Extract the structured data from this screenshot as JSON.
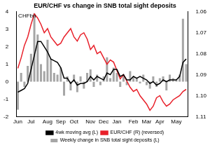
{
  "chart_data": {
    "type": "bar",
    "title": "EUR/CHF vs change in SNB total sight deposits",
    "ylabel": "CHFbn",
    "categories": [
      "Jun",
      null,
      null,
      null,
      "Jul",
      null,
      null,
      null,
      null,
      "Aug",
      null,
      null,
      null,
      "Sep",
      null,
      null,
      null,
      "Oct",
      null,
      null,
      null,
      null,
      "Nov",
      null,
      null,
      null,
      "Dec",
      null,
      null,
      null,
      "Jan",
      null,
      null,
      null,
      null,
      "Feb",
      null,
      null,
      null,
      "Mar",
      null,
      null,
      null,
      "Apr",
      null,
      null,
      null,
      null,
      "May",
      null,
      null,
      null
    ],
    "series": [
      {
        "name": "Weekly change in SNB total sight deposits (L)",
        "type": "bar",
        "color": "#a6a6a6",
        "values": [
          -1.6,
          0.5,
          -0.3,
          0.9,
          1.6,
          3.9,
          2.7,
          1.0,
          0.6,
          2.4,
          1.3,
          0.5,
          0.4,
          0.8,
          -0.8,
          0.3,
          -0.5,
          0.4,
          -0.6,
          0.3,
          -0.4,
          0.5,
          0.7,
          -0.3,
          0.4,
          -0.2,
          0.3,
          1.4,
          0.2,
          0.8,
          0.5,
          -0.3,
          0.4,
          -0.2,
          0.6,
          0.3,
          0.2,
          -0.1,
          0.4,
          -0.2,
          -0.4,
          0.3,
          -0.3,
          0.2,
          0.3,
          -0.5,
          0.4,
          0.2,
          0.1,
          0.4,
          3.6,
          1.0
        ]
      },
      {
        "name": "4wk moving avg (L)",
        "type": "line",
        "color": "#000000",
        "values": [
          -0.6,
          -0.5,
          -0.4,
          -0.1,
          0.7,
          1.5,
          2.3,
          2.3,
          2.0,
          1.7,
          1.3,
          1.2,
          1.1,
          0.8,
          0.2,
          0.2,
          -0.1,
          0.1,
          -0.2,
          -0.1,
          -0.1,
          0.0,
          0.3,
          0.1,
          0.3,
          0.2,
          0.1,
          0.5,
          0.4,
          0.7,
          0.7,
          0.3,
          0.4,
          0.1,
          0.1,
          0.3,
          0.2,
          0.3,
          0.2,
          0.1,
          -0.1,
          0.0,
          -0.2,
          -0.1,
          0.1,
          0.0,
          0.1,
          0.1,
          0.1,
          0.3,
          1.1,
          1.3
        ]
      },
      {
        "name": "EUR/CHF (R) (reversed)",
        "type": "line",
        "color": "#e8202a",
        "axis": "y2",
        "values": [
          1.087,
          1.082,
          1.076,
          1.072,
          1.066,
          1.061,
          1.063,
          1.066,
          1.07,
          1.068,
          1.072,
          1.074,
          1.076,
          1.075,
          1.072,
          1.07,
          1.068,
          1.072,
          1.074,
          1.071,
          1.07,
          1.073,
          1.078,
          1.076,
          1.08,
          1.079,
          1.082,
          1.085,
          1.083,
          1.084,
          1.088,
          1.092,
          1.09,
          1.093,
          1.096,
          1.098,
          1.097,
          1.1,
          1.102,
          1.104,
          1.107,
          1.105,
          1.101,
          1.1,
          1.103,
          1.105,
          1.104,
          1.102,
          1.101,
          1.1,
          1.098,
          1.097
        ]
      }
    ],
    "ylim": [
      -2,
      4
    ],
    "yticks": [
      -2,
      -1,
      0,
      1,
      2,
      3,
      4
    ],
    "y2lim": [
      1.11,
      1.06
    ],
    "y2ticks": [
      1.06,
      1.07,
      1.08,
      1.09,
      {
        "value": 1.1,
        "label": "1.10"
      },
      1.11
    ],
    "grid": false,
    "legend": "bottom"
  }
}
